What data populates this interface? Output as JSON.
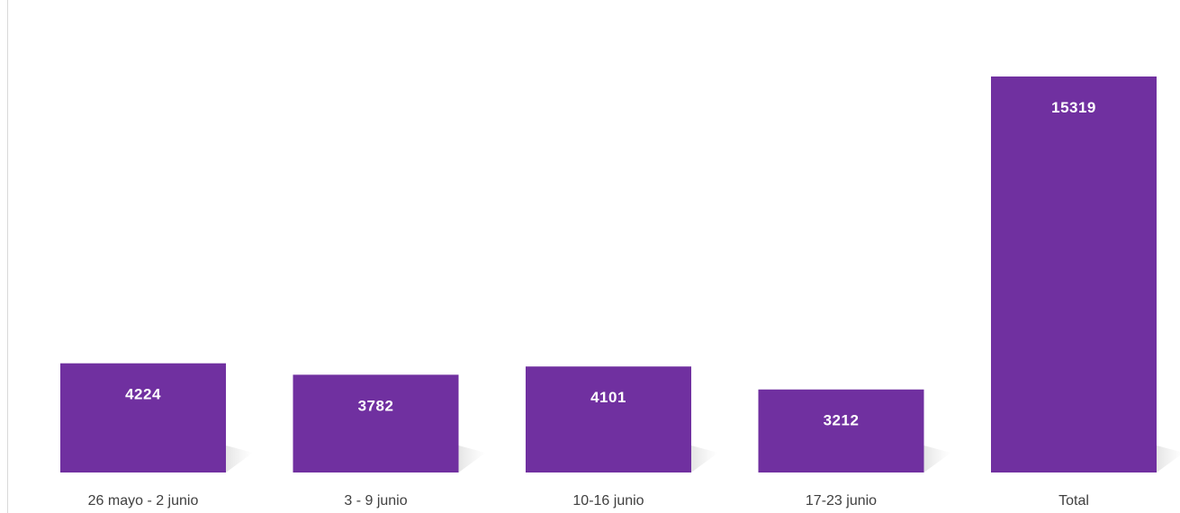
{
  "chart_data": {
    "type": "bar",
    "categories": [
      "26 mayo - 2 junio",
      "3 - 9 junio",
      "10-16 junio",
      "17-23 junio",
      "Total"
    ],
    "values": [
      4224,
      3782,
      4101,
      3212,
      15319
    ],
    "color": "#7030a0"
  }
}
